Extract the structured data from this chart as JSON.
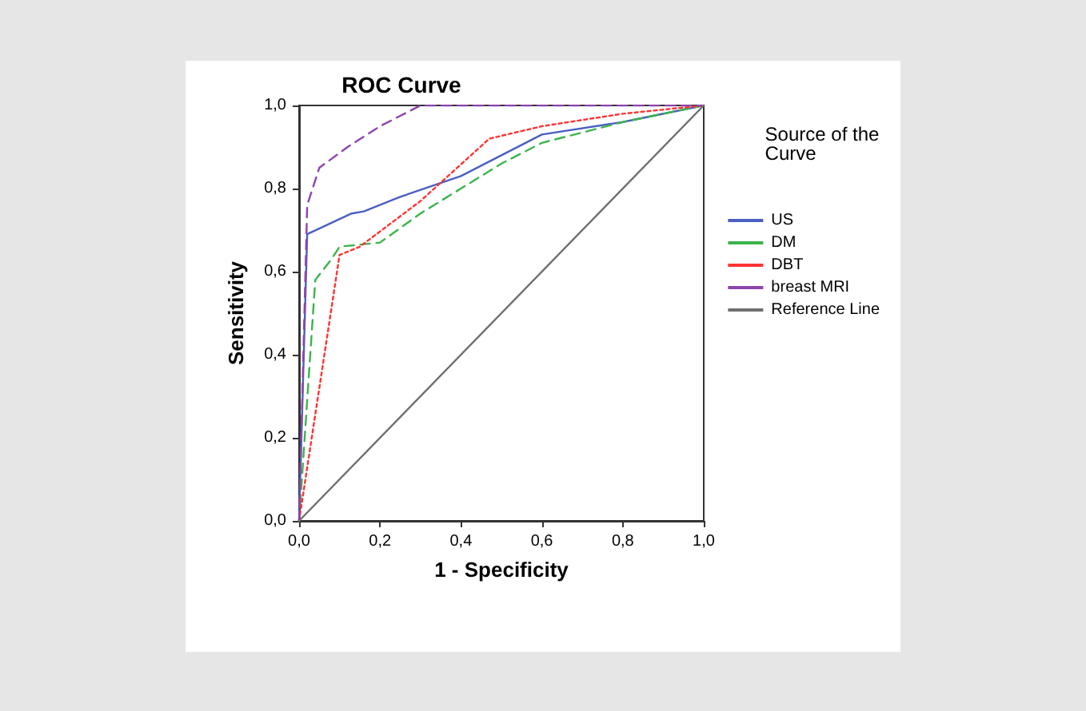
{
  "chart_data": {
    "type": "line",
    "title": "ROC Curve",
    "xlabel": "1 - Specificity",
    "ylabel": "Sensitivity",
    "legend_title": "Source of the Curve",
    "legend": "right",
    "grid": false,
    "marker": "none",
    "xlim": [
      0,
      1
    ],
    "ylim": [
      0,
      1
    ],
    "xticks": [
      {
        "value": 0,
        "label": "0,0"
      },
      {
        "value": 0.2,
        "label": "0,2"
      },
      {
        "value": 0.4,
        "label": "0,4"
      },
      {
        "value": 0.6,
        "label": "0,6"
      },
      {
        "value": 0.8,
        "label": "0,8"
      },
      {
        "value": 1,
        "label": "1,0"
      }
    ],
    "yticks": [
      {
        "value": 0,
        "label": "0,0"
      },
      {
        "value": 0.2,
        "label": "0,2"
      },
      {
        "value": 0.4,
        "label": "0,4"
      },
      {
        "value": 0.6,
        "label": "0,6"
      },
      {
        "value": 0.8,
        "label": "0,8"
      },
      {
        "value": 1,
        "label": "1,0"
      }
    ],
    "series": [
      {
        "name": "US",
        "color": "#4a5fc1",
        "line_style": "solid",
        "x": [
          0,
          0.02,
          0.13,
          0.16,
          0.25,
          0.4,
          0.5,
          0.6,
          0.8,
          1
        ],
        "values": [
          0,
          0.69,
          0.74,
          0.745,
          0.78,
          0.83,
          0.88,
          0.93,
          0.96,
          1
        ]
      },
      {
        "name": "DM",
        "color": "#3cb44b",
        "line_style": "dashed",
        "x": [
          0,
          0.04,
          0.08,
          0.1,
          0.2,
          0.3,
          0.4,
          0.5,
          0.6,
          0.8,
          1
        ],
        "values": [
          0,
          0.58,
          0.63,
          0.66,
          0.67,
          0.74,
          0.8,
          0.86,
          0.91,
          0.96,
          1
        ]
      },
      {
        "name": "DBT",
        "color": "#ff3333",
        "line_style": "dotted",
        "x": [
          0,
          0.1,
          0.15,
          0.3,
          0.47,
          0.6,
          0.8,
          1
        ],
        "values": [
          0,
          0.64,
          0.66,
          0.77,
          0.92,
          0.95,
          0.98,
          1
        ]
      },
      {
        "name": "breast MRI",
        "color": "#8e44ad",
        "line_style": "dashed",
        "x": [
          0,
          0.02,
          0.05,
          0.12,
          0.2,
          0.3,
          1
        ],
        "values": [
          0,
          0.76,
          0.85,
          0.9,
          0.95,
          1,
          1
        ]
      },
      {
        "name": "Reference Line",
        "color": "#707070",
        "line_style": "solid",
        "x": [
          0,
          1
        ],
        "values": [
          0,
          1
        ]
      }
    ]
  }
}
